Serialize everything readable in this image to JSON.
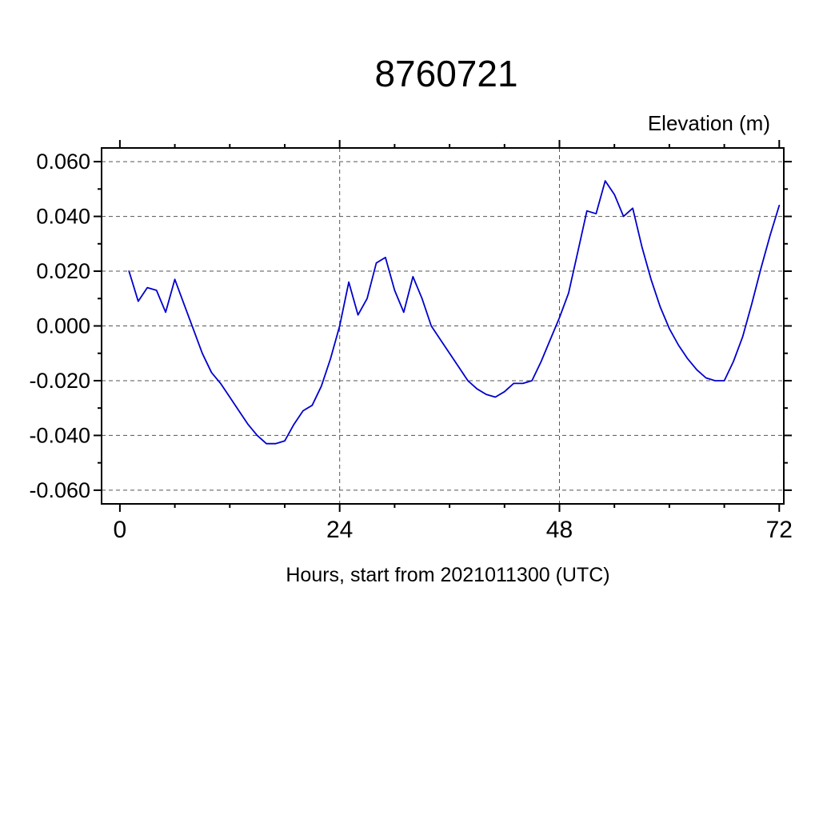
{
  "chart_data": {
    "type": "line",
    "title": "8760721",
    "ylabel": "Elevation (m)",
    "xlabel": "Hours, start from 2021011300 (UTC)",
    "xlim": [
      -2,
      72.5
    ],
    "ylim": [
      -0.065,
      0.065
    ],
    "x_ticks": [
      0,
      24,
      48,
      72
    ],
    "x_tick_labels": [
      "0",
      "24",
      "48",
      "72"
    ],
    "x_minor_step": 6,
    "y_ticks": [
      0.06,
      0.04,
      0.02,
      0.0,
      -0.02,
      -0.04,
      -0.06
    ],
    "y_tick_labels": [
      "0.060",
      "0.040",
      "0.020",
      "0.000",
      "-0.020",
      "-0.040",
      "-0.060"
    ],
    "y_minor_step": 0.01,
    "grid": "dashed",
    "gridlines_x": [
      24,
      48
    ],
    "legend": "none",
    "line_color": "#0000cc",
    "series": [
      {
        "name": "elevation",
        "x": [
          1,
          2,
          3,
          4,
          5,
          6,
          7,
          8,
          9,
          10,
          11,
          12,
          13,
          14,
          15,
          16,
          17,
          18,
          19,
          20,
          21,
          22,
          23,
          24,
          25,
          26,
          27,
          28,
          29,
          30,
          31,
          32,
          33,
          34,
          35,
          36,
          37,
          38,
          39,
          40,
          41,
          42,
          43,
          44,
          45,
          46,
          47,
          48,
          49,
          50,
          51,
          52,
          53,
          54,
          55,
          56,
          57,
          58,
          59,
          60,
          61,
          62,
          63,
          64,
          65,
          66,
          67,
          68,
          69,
          70,
          71,
          72
        ],
        "y": [
          0.02,
          0.009,
          0.014,
          0.013,
          0.005,
          0.017,
          0.008,
          -0.001,
          -0.01,
          -0.017,
          -0.021,
          -0.026,
          -0.031,
          -0.036,
          -0.04,
          -0.043,
          -0.043,
          -0.042,
          -0.036,
          -0.031,
          -0.029,
          -0.022,
          -0.012,
          0.0,
          0.016,
          0.004,
          0.01,
          0.023,
          0.025,
          0.013,
          0.005,
          0.018,
          0.01,
          0.0,
          -0.005,
          -0.01,
          -0.015,
          -0.02,
          -0.023,
          -0.025,
          -0.026,
          -0.024,
          -0.021,
          -0.021,
          -0.02,
          -0.013,
          -0.005,
          0.003,
          0.012,
          0.027,
          0.042,
          0.041,
          0.053,
          0.048,
          0.04,
          0.043,
          0.029,
          0.017,
          0.007,
          -0.001,
          -0.007,
          -0.012,
          -0.016,
          -0.019,
          -0.02,
          -0.02,
          -0.013,
          -0.004,
          0.008,
          0.021,
          0.033,
          0.044
        ]
      }
    ]
  }
}
